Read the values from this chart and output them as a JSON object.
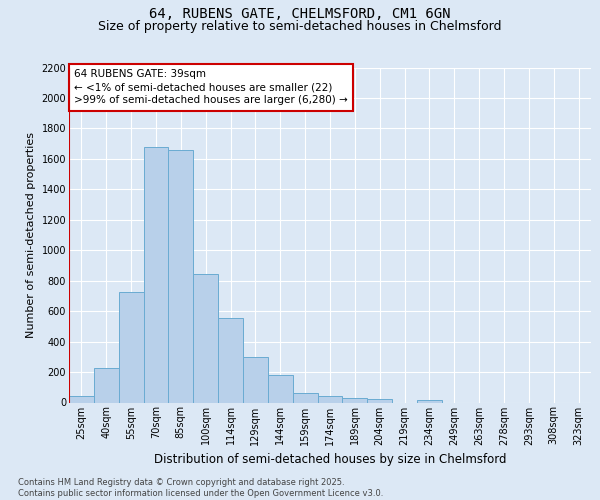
{
  "title1": "64, RUBENS GATE, CHELMSFORD, CM1 6GN",
  "title2": "Size of property relative to semi-detached houses in Chelmsford",
  "xlabel": "Distribution of semi-detached houses by size in Chelmsford",
  "ylabel": "Number of semi-detached properties",
  "categories": [
    "25sqm",
    "40sqm",
    "55sqm",
    "70sqm",
    "85sqm",
    "100sqm",
    "114sqm",
    "129sqm",
    "144sqm",
    "159sqm",
    "174sqm",
    "189sqm",
    "204sqm",
    "219sqm",
    "234sqm",
    "249sqm",
    "263sqm",
    "278sqm",
    "293sqm",
    "308sqm",
    "323sqm"
  ],
  "values": [
    45,
    225,
    725,
    1675,
    1660,
    845,
    555,
    300,
    180,
    65,
    40,
    30,
    20,
    0,
    15,
    0,
    0,
    0,
    0,
    0,
    0
  ],
  "bar_color": "#b8d0ea",
  "bar_edge_color": "#6aabd2",
  "subject_line_color": "#cc0000",
  "annotation_text": "64 RUBENS GATE: 39sqm\n← <1% of semi-detached houses are smaller (22)\n>99% of semi-detached houses are larger (6,280) →",
  "annotation_box_edge_color": "#cc0000",
  "ylim_max": 2200,
  "yticks": [
    0,
    200,
    400,
    600,
    800,
    1000,
    1200,
    1400,
    1600,
    1800,
    2000,
    2200
  ],
  "background_color": "#dce8f5",
  "grid_color": "#ffffff",
  "footer_text": "Contains HM Land Registry data © Crown copyright and database right 2025.\nContains public sector information licensed under the Open Government Licence v3.0.",
  "title_fontsize": 10,
  "subtitle_fontsize": 9,
  "tick_fontsize": 7,
  "ylabel_fontsize": 8,
  "xlabel_fontsize": 8.5,
  "footer_fontsize": 6,
  "annot_fontsize": 7.5
}
